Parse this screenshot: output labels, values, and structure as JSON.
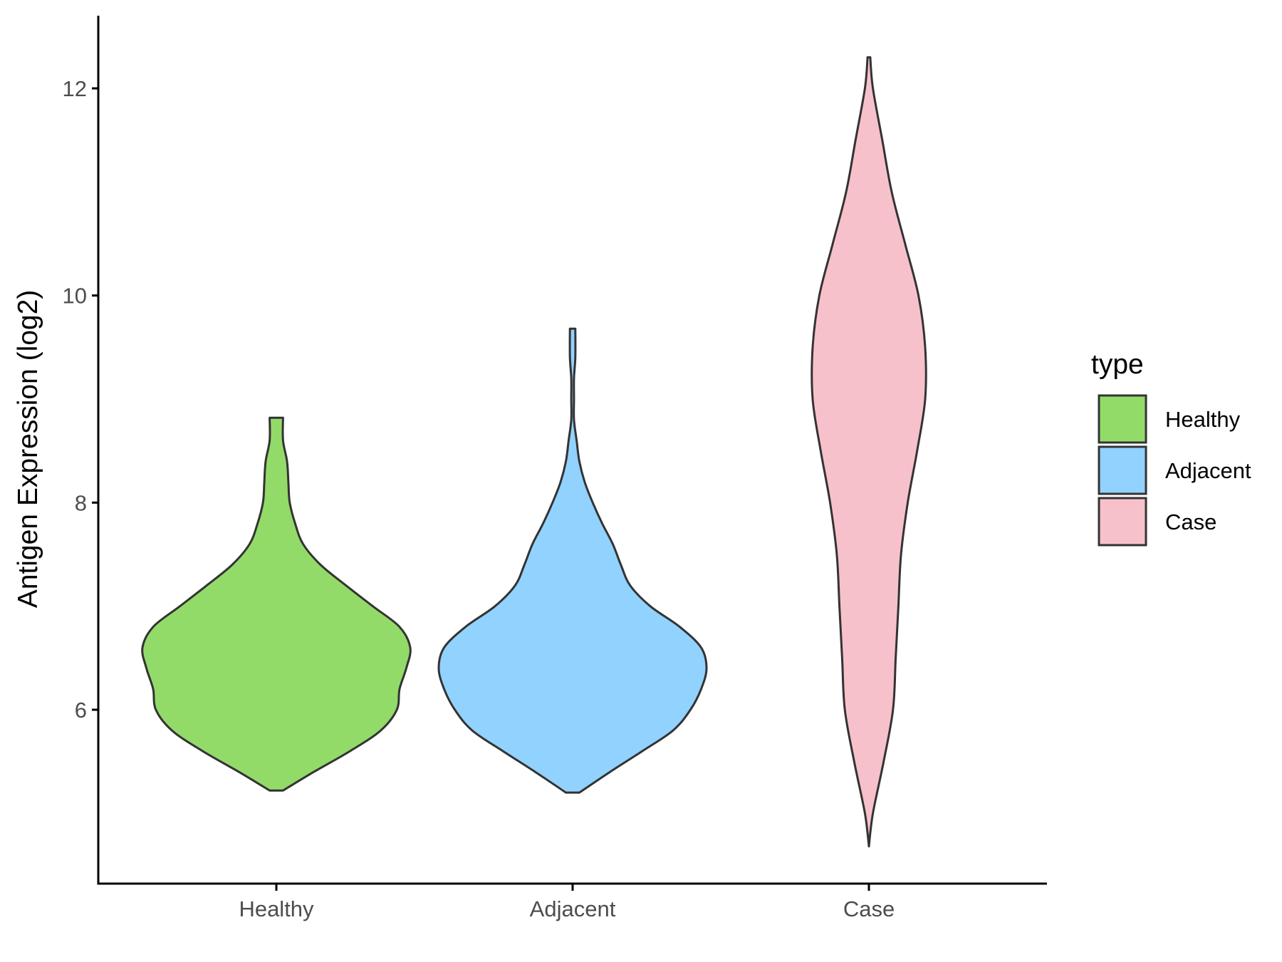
{
  "chart_data": {
    "type": "violin",
    "title": "",
    "xlabel": "",
    "ylabel": "Antigen Expression (log2)",
    "categories": [
      "Healthy",
      "Adjacent",
      "Case"
    ],
    "ylim": [
      4.3,
      12.7
    ],
    "yticks": [
      6,
      8,
      10,
      12
    ],
    "grid": false,
    "legend": {
      "title": "type",
      "position": "right",
      "entries": [
        "Healthy",
        "Adjacent",
        "Case"
      ]
    },
    "colors": {
      "Healthy": "#93DB69",
      "Adjacent": "#92D2FF",
      "Case": "#F7C1CB",
      "outline": "#333333"
    },
    "series": [
      {
        "name": "Healthy",
        "min": 5.22,
        "max": 8.82,
        "density": [
          [
            5.22,
            0.05
          ],
          [
            5.4,
            0.28
          ],
          [
            5.6,
            0.55
          ],
          [
            5.8,
            0.78
          ],
          [
            6.0,
            0.9
          ],
          [
            6.2,
            0.92
          ],
          [
            6.4,
            0.97
          ],
          [
            6.6,
            1.0
          ],
          [
            6.8,
            0.92
          ],
          [
            7.0,
            0.72
          ],
          [
            7.2,
            0.52
          ],
          [
            7.4,
            0.33
          ],
          [
            7.6,
            0.2
          ],
          [
            7.8,
            0.14
          ],
          [
            8.0,
            0.1
          ],
          [
            8.2,
            0.09
          ],
          [
            8.4,
            0.08
          ],
          [
            8.6,
            0.05
          ],
          [
            8.82,
            0.05
          ]
        ]
      },
      {
        "name": "Adjacent",
        "min": 5.2,
        "max": 9.68,
        "density": [
          [
            5.2,
            0.05
          ],
          [
            5.4,
            0.28
          ],
          [
            5.6,
            0.52
          ],
          [
            5.8,
            0.75
          ],
          [
            6.0,
            0.88
          ],
          [
            6.2,
            0.96
          ],
          [
            6.4,
            1.0
          ],
          [
            6.6,
            0.96
          ],
          [
            6.8,
            0.8
          ],
          [
            7.0,
            0.58
          ],
          [
            7.2,
            0.43
          ],
          [
            7.4,
            0.36
          ],
          [
            7.6,
            0.3
          ],
          [
            7.8,
            0.22
          ],
          [
            8.0,
            0.15
          ],
          [
            8.2,
            0.09
          ],
          [
            8.4,
            0.05
          ],
          [
            8.6,
            0.03
          ],
          [
            8.8,
            0.01
          ],
          [
            9.0,
            0.01
          ],
          [
            9.2,
            0.01
          ],
          [
            9.4,
            0.02
          ],
          [
            9.68,
            0.02
          ]
        ]
      },
      {
        "name": "Case",
        "min": 4.68,
        "max": 12.3,
        "density": [
          [
            4.68,
            0.0
          ],
          [
            5.0,
            0.03
          ],
          [
            5.5,
            0.11
          ],
          [
            6.0,
            0.18
          ],
          [
            6.5,
            0.2
          ],
          [
            7.0,
            0.22
          ],
          [
            7.5,
            0.24
          ],
          [
            8.0,
            0.29
          ],
          [
            8.5,
            0.36
          ],
          [
            9.0,
            0.42
          ],
          [
            9.5,
            0.42
          ],
          [
            10.0,
            0.37
          ],
          [
            10.5,
            0.27
          ],
          [
            11.0,
            0.17
          ],
          [
            11.5,
            0.1
          ],
          [
            12.0,
            0.03
          ],
          [
            12.3,
            0.01
          ]
        ]
      }
    ]
  }
}
